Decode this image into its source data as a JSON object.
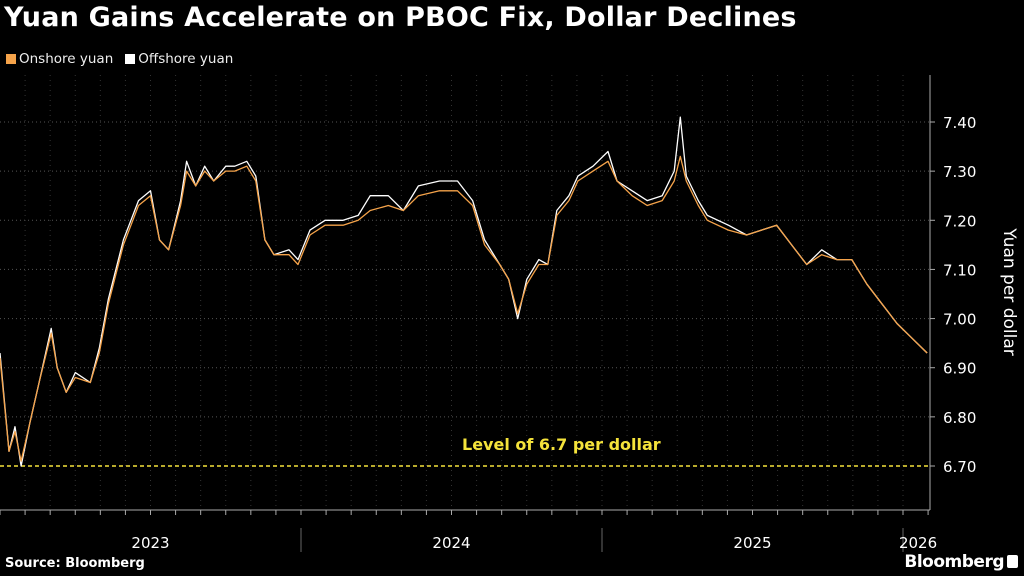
{
  "chart_data": {
    "type": "line",
    "title": "Yuan Gains Accelerate on PBOC Fix, Dollar Declines",
    "ylabel": "Yuan per dollar",
    "xlabel": "",
    "ylim": [
      6.65,
      7.47
    ],
    "yticks": [
      "6.70",
      "6.80",
      "6.90",
      "7.00",
      "7.10",
      "7.20",
      "7.30",
      "7.40"
    ],
    "xlim": [
      2023.0,
      2026.09
    ],
    "xticks": [
      {
        "label": "2023",
        "pos": 2023.5
      },
      {
        "label": "2024",
        "pos": 2024.5
      },
      {
        "label": "2025",
        "pos": 2025.5
      },
      {
        "label": "2026",
        "pos": 2026.05
      }
    ],
    "year_separators": [
      2024.0,
      2025.0,
      2026.0
    ],
    "grid": true,
    "legend_position": "top-left",
    "x": [
      2023.0,
      2023.03,
      2023.05,
      2023.07,
      2023.1,
      2023.13,
      2023.17,
      2023.19,
      2023.22,
      2023.25,
      2023.3,
      2023.33,
      2023.36,
      2023.41,
      2023.46,
      2023.5,
      2023.53,
      2023.56,
      2023.6,
      2023.62,
      2023.65,
      2023.68,
      2023.71,
      2023.75,
      2023.78,
      2023.82,
      2023.85,
      2023.88,
      2023.91,
      2023.96,
      2023.99,
      2024.03,
      2024.08,
      2024.14,
      2024.19,
      2024.23,
      2024.29,
      2024.34,
      2024.39,
      2024.46,
      2024.52,
      2024.57,
      2024.61,
      2024.66,
      2024.69,
      2024.72,
      2024.75,
      2024.79,
      2024.82,
      2024.85,
      2024.89,
      2024.92,
      2024.97,
      2025.02,
      2025.05,
      2025.1,
      2025.15,
      2025.2,
      2025.24,
      2025.26,
      2025.28,
      2025.32,
      2025.35,
      2025.42,
      2025.48,
      2025.53,
      2025.58,
      2025.63,
      2025.68,
      2025.73,
      2025.78,
      2025.83,
      2025.88,
      2025.93,
      2025.98,
      2026.03,
      2026.08
    ],
    "series": [
      {
        "name": "Onshore yuan",
        "color": "#f5a34a",
        "values": [
          6.92,
          6.73,
          6.77,
          6.71,
          6.79,
          6.87,
          6.97,
          6.9,
          6.85,
          6.88,
          6.87,
          6.93,
          7.03,
          7.15,
          7.23,
          7.25,
          7.16,
          7.14,
          7.23,
          7.3,
          7.27,
          7.3,
          7.28,
          7.3,
          7.3,
          7.31,
          7.28,
          7.16,
          7.13,
          7.13,
          7.11,
          7.17,
          7.19,
          7.19,
          7.2,
          7.22,
          7.23,
          7.22,
          7.25,
          7.26,
          7.26,
          7.23,
          7.15,
          7.11,
          7.08,
          7.01,
          7.07,
          7.11,
          7.11,
          7.21,
          7.24,
          7.28,
          7.3,
          7.32,
          7.28,
          7.25,
          7.23,
          7.24,
          7.28,
          7.33,
          7.28,
          7.23,
          7.2,
          7.18,
          7.17,
          7.18,
          7.19,
          7.15,
          7.11,
          7.13,
          7.12,
          7.12,
          7.07,
          7.03,
          6.99,
          6.96,
          6.93
        ]
      },
      {
        "name": "Offshore yuan",
        "color": "#ffffff",
        "values": [
          6.93,
          6.73,
          6.78,
          6.7,
          6.79,
          6.87,
          6.98,
          6.9,
          6.85,
          6.89,
          6.87,
          6.94,
          7.04,
          7.16,
          7.24,
          7.26,
          7.16,
          7.14,
          7.24,
          7.32,
          7.27,
          7.31,
          7.28,
          7.31,
          7.31,
          7.32,
          7.29,
          7.16,
          7.13,
          7.14,
          7.12,
          7.18,
          7.2,
          7.2,
          7.21,
          7.25,
          7.25,
          7.22,
          7.27,
          7.28,
          7.28,
          7.24,
          7.16,
          7.11,
          7.08,
          7.0,
          7.08,
          7.12,
          7.11,
          7.22,
          7.25,
          7.29,
          7.31,
          7.34,
          7.28,
          7.26,
          7.24,
          7.25,
          7.3,
          7.41,
          7.29,
          7.24,
          7.21,
          7.19,
          7.17,
          7.18,
          7.19,
          7.15,
          7.11,
          7.14,
          7.12,
          7.12,
          7.07,
          7.03,
          6.99,
          6.96,
          6.93
        ]
      }
    ],
    "annotations": [
      {
        "text": "Level of 6.7 per dollar",
        "y": 6.7,
        "color": "#f5e33b",
        "style": "dashed"
      }
    ]
  },
  "footer": {
    "source": "Source: Bloomberg",
    "brand": "Bloomberg"
  }
}
